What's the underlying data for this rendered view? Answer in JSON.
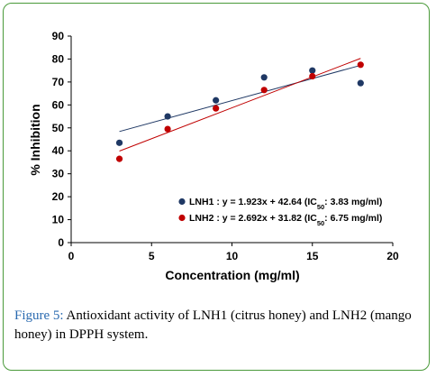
{
  "chart_data": {
    "type": "scatter",
    "xlabel": "Concentration (mg/ml)",
    "ylabel": "% Inhibition",
    "xlim": [
      0,
      20
    ],
    "ylim": [
      0,
      90
    ],
    "xticks": [
      0,
      5,
      10,
      15,
      20
    ],
    "yticks": [
      0,
      10,
      20,
      30,
      40,
      50,
      60,
      70,
      80,
      90
    ],
    "grid": false,
    "legend_position": "bottom-right",
    "series": [
      {
        "name": "LNH1",
        "color": "#1f3864",
        "x": [
          3,
          6,
          9,
          12,
          15,
          18
        ],
        "y": [
          43.5,
          55,
          62,
          72,
          75,
          69.5
        ],
        "trendline": {
          "slope": 1.923,
          "intercept": 42.64,
          "x_range": [
            3,
            18
          ]
        },
        "legend": {
          "prefix": "LNH1 : y = 1.923x + 42.64 (IC",
          "sub": "50",
          "suffix": ": 3.83 mg/ml)"
        }
      },
      {
        "name": "LNH2",
        "color": "#c00000",
        "x": [
          3,
          6,
          9,
          12,
          15,
          18
        ],
        "y": [
          36.5,
          49.5,
          58.5,
          66.5,
          72.5,
          77.5
        ],
        "trendline": {
          "slope": 2.692,
          "intercept": 31.82,
          "x_range": [
            3,
            18
          ]
        },
        "legend": {
          "prefix": "LNH2 : y = 2.692x + 31.82 (IC",
          "sub": "50",
          "suffix": ": 6.75 mg/ml)"
        }
      }
    ]
  },
  "caption": {
    "label": "Figure 5:",
    "text": " Antioxidant activity of LNH1 (citrus honey) and LNH2 (mango honey) in DPPH system."
  }
}
